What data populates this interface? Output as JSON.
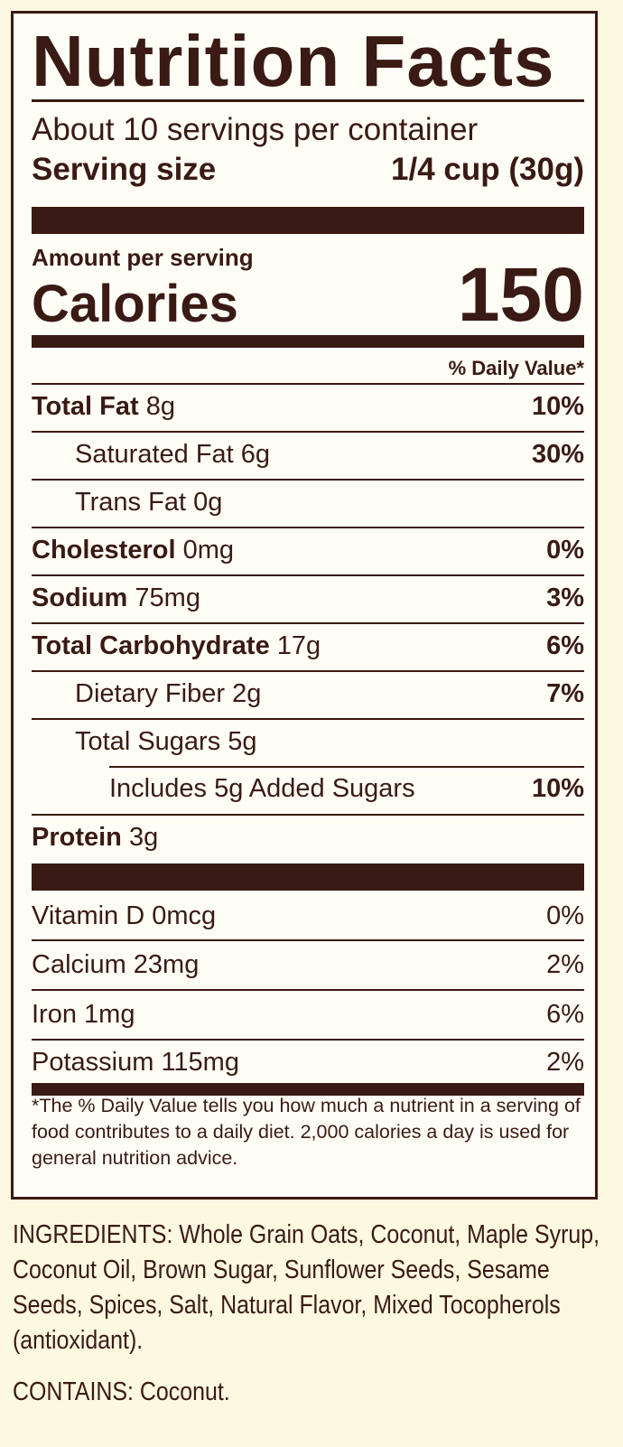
{
  "label": {
    "title": "Nutrition Facts",
    "servings_per_container": "About 10 servings per container",
    "serving_size_label": "Serving size",
    "serving_size_value": "1/4 cup (30g)",
    "amount_per_serving": "Amount per serving",
    "calories_label": "Calories",
    "calories_value": "150",
    "daily_value_header": "% Daily Value*",
    "nutrients": [
      {
        "name": "Total Fat",
        "amount": "8g",
        "dv": "10%"
      },
      {
        "name": "Saturated Fat",
        "amount": "6g",
        "dv": "30%"
      },
      {
        "name": "Trans Fat",
        "amount": "0g",
        "dv": ""
      },
      {
        "name": "Cholesterol",
        "amount": "0mg",
        "dv": "0%"
      },
      {
        "name": "Sodium",
        "amount": "75mg",
        "dv": "3%"
      },
      {
        "name": "Total Carbohydrate",
        "amount": "17g",
        "dv": "6%"
      },
      {
        "name": "Dietary Fiber",
        "amount": "2g",
        "dv": "7%"
      },
      {
        "name": "Total Sugars",
        "amount": "5g",
        "dv": ""
      },
      {
        "name": "Includes 5g Added Sugars",
        "amount": "",
        "dv": "10%"
      },
      {
        "name": "Protein",
        "amount": "3g",
        "dv": ""
      }
    ],
    "vitamins": [
      {
        "name": "Vitamin D 0mcg",
        "dv": "0%"
      },
      {
        "name": "Calcium 23mg",
        "dv": "2%"
      },
      {
        "name": "Iron 1mg",
        "dv": "6%"
      },
      {
        "name": "Potassium 115mg",
        "dv": "2%"
      }
    ],
    "footnote": "*The % Daily Value tells you how much a nutrient in a serving of food contributes to a daily diet. 2,000 calories a day is used for general nutrition advice."
  },
  "ingredients": "INGREDIENTS: Whole Grain Oats, Coconut, Maple Syrup, Coconut Oil, Brown Sugar, Sunflower Seeds, Sesame Seeds, Spices, Salt, Natural Flavor, Mixed Tocopherols (antioxidant).",
  "contains": "CONTAINS: Coconut.",
  "colors": {
    "background": "#fdf8e0",
    "panel": "#fffef6",
    "ink": "#3a1a14"
  }
}
